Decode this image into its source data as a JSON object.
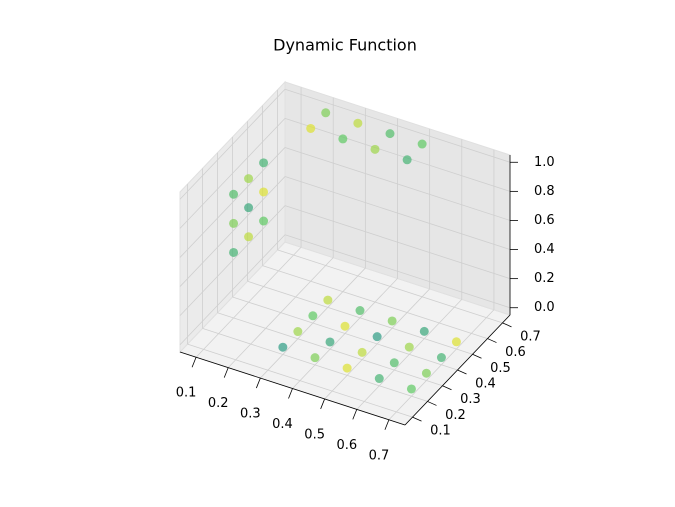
{
  "chart_data": {
    "type": "scatter3d",
    "title": "Dynamic Function",
    "x": [
      0.1,
      0.1,
      0.1,
      0.1,
      0.1,
      0.1,
      0.1,
      0.1,
      0.1,
      0.2,
      0.3,
      0.4,
      0.5,
      0.2,
      0.3,
      0.4,
      0.5,
      0.3,
      0.4,
      0.5,
      0.6,
      0.7,
      0.3,
      0.4,
      0.5,
      0.6,
      0.7,
      0.3,
      0.4,
      0.5,
      0.6,
      0.7,
      0.3,
      0.4,
      0.5,
      0.6,
      0.7
    ],
    "y": [
      0.3,
      0.4,
      0.5,
      0.3,
      0.4,
      0.5,
      0.3,
      0.4,
      0.5,
      0.6,
      0.6,
      0.6,
      0.6,
      0.7,
      0.7,
      0.7,
      0.7,
      0.2,
      0.2,
      0.2,
      0.2,
      0.2,
      0.3,
      0.3,
      0.3,
      0.3,
      0.3,
      0.4,
      0.4,
      0.4,
      0.4,
      0.4,
      0.5,
      0.5,
      0.5,
      0.5,
      0.5
    ],
    "z": [
      0.4,
      0.4,
      0.4,
      0.6,
      0.6,
      0.6,
      0.8,
      0.8,
      0.8,
      1,
      1,
      1,
      1,
      1,
      1,
      1,
      1,
      0,
      0,
      0,
      0,
      0,
      0,
      0,
      0,
      0,
      0,
      0,
      0,
      0,
      0,
      0,
      0,
      0,
      0,
      0,
      0
    ],
    "c": [
      0.3,
      0.8,
      0.5,
      0.6,
      0.2,
      0.9,
      0.4,
      0.7,
      0.3,
      0.9,
      0.5,
      0.7,
      0.3,
      0.6,
      0.8,
      0.4,
      0.5,
      0.1,
      0.6,
      0.9,
      0.3,
      0.5,
      0.7,
      0.2,
      0.8,
      0.4,
      0.6,
      0.5,
      0.9,
      0.1,
      0.7,
      0.3,
      0.8,
      0.4,
      0.6,
      0.2,
      0.9
    ],
    "colormap": [
      "#21918c",
      "#5ec962",
      "#fde725"
    ],
    "alpha": 0.7,
    "xlim": [
      0.05,
      0.75
    ],
    "ylim": [
      0.05,
      0.75
    ],
    "zlim": [
      -0.05,
      1.05
    ],
    "xticks": [
      0.1,
      0.2,
      0.3,
      0.4,
      0.5,
      0.6,
      0.7
    ],
    "yticks": [
      0.1,
      0.2,
      0.3,
      0.4,
      0.5,
      0.6,
      0.7
    ],
    "zticks": [
      {
        "value": 0,
        "label": "0.0"
      },
      0.2,
      0.4,
      0.6,
      0.8,
      {
        "value": 1,
        "label": "1.0"
      }
    ],
    "grid": true
  }
}
